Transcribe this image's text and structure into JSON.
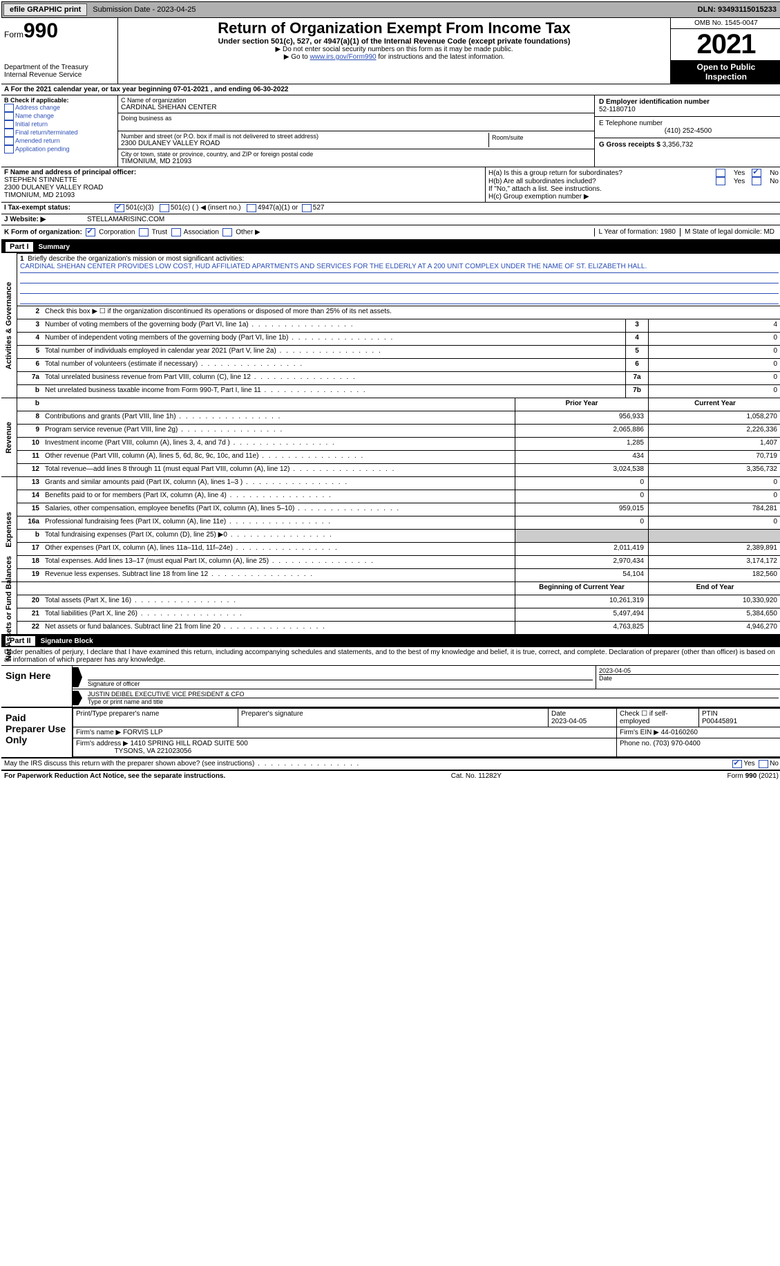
{
  "topbar": {
    "efile_label": "efile GRAPHIC print",
    "submission_label": "Submission Date - 2023-04-25",
    "dln_label": "DLN: 93493115015233"
  },
  "header": {
    "form_prefix": "Form",
    "form_number": "990",
    "dept_line1": "Department of the Treasury",
    "dept_line2": "Internal Revenue Service",
    "title": "Return of Organization Exempt From Income Tax",
    "subtitle": "Under section 501(c), 527, or 4947(a)(1) of the Internal Revenue Code (except private foundations)",
    "note1": "▶ Do not enter social security numbers on this form as it may be made public.",
    "note2_pre": "▶ Go to ",
    "note2_link": "www.irs.gov/Form990",
    "note2_post": " for instructions and the latest information.",
    "omb": "OMB No. 1545-0047",
    "year": "2021",
    "inspect1": "Open to Public",
    "inspect2": "Inspection"
  },
  "period": "A For the 2021 calendar year, or tax year beginning 07-01-2021  , and ending 06-30-2022",
  "boxB": {
    "title": "B Check if applicable:",
    "opts": [
      "Address change",
      "Name change",
      "Initial return",
      "Final return/terminated",
      "Amended return",
      "Application pending"
    ]
  },
  "boxC": {
    "name_lbl": "C Name of organization",
    "name": "CARDINAL SHEHAN CENTER",
    "dba_lbl": "Doing business as",
    "addr_lbl": "Number and street (or P.O. box if mail is not delivered to street address)",
    "addr": "2300 DULANEY VALLEY ROAD",
    "room_lbl": "Room/suite",
    "city_lbl": "City or town, state or province, country, and ZIP or foreign postal code",
    "city": "TIMONIUM, MD  21093"
  },
  "boxD": {
    "lbl": "D Employer identification number",
    "val": "52-1180710"
  },
  "boxE": {
    "lbl": "E Telephone number",
    "val": "(410) 252-4500"
  },
  "boxG": {
    "lbl": "G Gross receipts $",
    "val": "3,356,732"
  },
  "boxF": {
    "lbl": "F Name and address of principal officer:",
    "name": "STEPHEN STINNETTE",
    "addr1": "2300 DULANEY VALLEY ROAD",
    "addr2": "TIMONIUM, MD  21093"
  },
  "boxH": {
    "ha_lbl": "H(a)  Is this a group return for subordinates?",
    "hb_lbl": "H(b)  Are all subordinates included?",
    "hb_note": "If \"No,\" attach a list. See instructions.",
    "hc_lbl": "H(c)  Group exemption number ▶",
    "yes": "Yes",
    "no": "No"
  },
  "lineI": {
    "lbl": "I   Tax-exempt status:",
    "o1": "501(c)(3)",
    "o2": "501(c) (  ) ◀ (insert no.)",
    "o3": "4947(a)(1) or",
    "o4": "527"
  },
  "lineJ": {
    "lbl": "J   Website: ▶",
    "val": "STELLAMARISINC.COM"
  },
  "lineK": {
    "lbl": "K Form of organization:",
    "corp": "Corporation",
    "trust": "Trust",
    "assoc": "Association",
    "other": "Other ▶"
  },
  "lineL": {
    "lbl": "L Year of formation:",
    "val": "1980"
  },
  "lineM": {
    "lbl": "M State of legal domicile:",
    "val": "MD"
  },
  "part1": {
    "label": "Part I",
    "title": "Summary"
  },
  "summary": {
    "line1_lbl": "Briefly describe the organization's mission or most significant activities:",
    "mission": "CARDINAL SHEHAN CENTER PROVIDES LOW COST, HUD AFFILIATED APARTMENTS AND SERVICES FOR THE ELDERLY AT A 200 UNIT COMPLEX UNDER THE NAME OF ST. ELIZABETH HALL.",
    "line2_lbl": "Check this box ▶ ☐ if the organization discontinued its operations or disposed of more than 25% of its net assets.",
    "rows_ag": [
      {
        "n": "3",
        "d": "Number of voting members of the governing body (Part VI, line 1a)",
        "box": "3",
        "v": "4"
      },
      {
        "n": "4",
        "d": "Number of independent voting members of the governing body (Part VI, line 1b)",
        "box": "4",
        "v": "0"
      },
      {
        "n": "5",
        "d": "Total number of individuals employed in calendar year 2021 (Part V, line 2a)",
        "box": "5",
        "v": "0"
      },
      {
        "n": "6",
        "d": "Total number of volunteers (estimate if necessary)",
        "box": "6",
        "v": "0"
      },
      {
        "n": "7a",
        "d": "Total unrelated business revenue from Part VIII, column (C), line 12",
        "box": "7a",
        "v": "0"
      },
      {
        "n": "b",
        "d": "Net unrelated business taxable income from Form 990-T, Part I, line 11",
        "box": "7b",
        "v": "0"
      }
    ],
    "hdr_prior": "Prior Year",
    "hdr_curr": "Current Year",
    "rows_rev": [
      {
        "n": "8",
        "d": "Contributions and grants (Part VIII, line 1h)",
        "p": "956,933",
        "c": "1,058,270"
      },
      {
        "n": "9",
        "d": "Program service revenue (Part VIII, line 2g)",
        "p": "2,065,886",
        "c": "2,226,336"
      },
      {
        "n": "10",
        "d": "Investment income (Part VIII, column (A), lines 3, 4, and 7d )",
        "p": "1,285",
        "c": "1,407"
      },
      {
        "n": "11",
        "d": "Other revenue (Part VIII, column (A), lines 5, 6d, 8c, 9c, 10c, and 11e)",
        "p": "434",
        "c": "70,719"
      },
      {
        "n": "12",
        "d": "Total revenue—add lines 8 through 11 (must equal Part VIII, column (A), line 12)",
        "p": "3,024,538",
        "c": "3,356,732"
      }
    ],
    "rows_exp": [
      {
        "n": "13",
        "d": "Grants and similar amounts paid (Part IX, column (A), lines 1–3 )",
        "p": "0",
        "c": "0"
      },
      {
        "n": "14",
        "d": "Benefits paid to or for members (Part IX, column (A), line 4)",
        "p": "0",
        "c": "0"
      },
      {
        "n": "15",
        "d": "Salaries, other compensation, employee benefits (Part IX, column (A), lines 5–10)",
        "p": "959,015",
        "c": "784,281"
      },
      {
        "n": "16a",
        "d": "Professional fundraising fees (Part IX, column (A), line 11e)",
        "p": "0",
        "c": "0"
      },
      {
        "n": "b",
        "d": "Total fundraising expenses (Part IX, column (D), line 25) ▶0",
        "p": "",
        "c": "",
        "grey": true
      },
      {
        "n": "17",
        "d": "Other expenses (Part IX, column (A), lines 11a–11d, 11f–24e)",
        "p": "2,011,419",
        "c": "2,389,891"
      },
      {
        "n": "18",
        "d": "Total expenses. Add lines 13–17 (must equal Part IX, column (A), line 25)",
        "p": "2,970,434",
        "c": "3,174,172"
      },
      {
        "n": "19",
        "d": "Revenue less expenses. Subtract line 18 from line 12",
        "p": "54,104",
        "c": "182,560"
      }
    ],
    "hdr_beg": "Beginning of Current Year",
    "hdr_end": "End of Year",
    "rows_net": [
      {
        "n": "20",
        "d": "Total assets (Part X, line 16)",
        "p": "10,261,319",
        "c": "10,330,920"
      },
      {
        "n": "21",
        "d": "Total liabilities (Part X, line 26)",
        "p": "5,497,494",
        "c": "5,384,650"
      },
      {
        "n": "22",
        "d": "Net assets or fund balances. Subtract line 21 from line 20",
        "p": "4,763,825",
        "c": "4,946,270"
      }
    ],
    "side_ag": "Activities & Governance",
    "side_rev": "Revenue",
    "side_exp": "Expenses",
    "side_net": "Net Assets or Fund Balances"
  },
  "part2": {
    "label": "Part II",
    "title": "Signature Block"
  },
  "sig": {
    "declaration": "Under penalties of perjury, I declare that I have examined this return, including accompanying schedules and statements, and to the best of my knowledge and belief, it is true, correct, and complete. Declaration of preparer (other than officer) is based on all information of which preparer has any knowledge.",
    "sign_here": "Sign Here",
    "sig_officer_lbl": "Signature of officer",
    "date_val": "2023-04-05",
    "date_lbl": "Date",
    "name_title": "JUSTIN DEIBEL  EXECUTIVE VICE PRESIDENT & CFO",
    "name_lbl": "Type or print name and title"
  },
  "prep": {
    "title": "Paid Preparer Use Only",
    "h_name": "Print/Type preparer's name",
    "h_sig": "Preparer's signature",
    "h_date_lbl": "Date",
    "h_date": "2023-04-05",
    "h_self": "Check ☐ if self-employed",
    "h_ptin_lbl": "PTIN",
    "h_ptin": "P00445891",
    "firm_lbl": "Firm's name     ▶",
    "firm": "FORVIS LLP",
    "ein_lbl": "Firm's EIN ▶",
    "ein": "44-0160260",
    "addr_lbl": "Firm's address ▶",
    "addr1": "1410 SPRING HILL ROAD SUITE 500",
    "addr2": "TYSONS, VA  221023056",
    "phone_lbl": "Phone no.",
    "phone": "(703) 970-0400"
  },
  "discuss": {
    "q": "May the IRS discuss this return with the preparer shown above? (see instructions)",
    "yes": "Yes",
    "no": "No"
  },
  "footer": {
    "left": "For Paperwork Reduction Act Notice, see the separate instructions.",
    "mid": "Cat. No. 11282Y",
    "right": "Form 990 (2021)"
  }
}
